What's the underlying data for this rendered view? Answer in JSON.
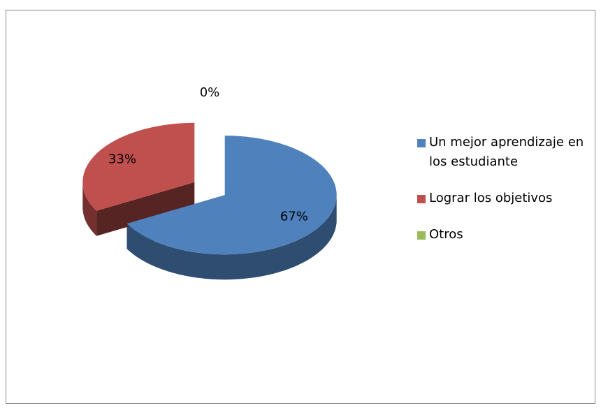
{
  "chart_data": {
    "type": "pie",
    "categories": [
      "Un mejor aprendizaje en los estudiante",
      "Lograr los objetivos",
      "Otros"
    ],
    "values": [
      67,
      33,
      0
    ],
    "value_labels": [
      "67%",
      "33%",
      "0%"
    ],
    "colors": [
      "#4f81bd",
      "#c0504d",
      "#9bbb59"
    ],
    "legend": "right"
  }
}
